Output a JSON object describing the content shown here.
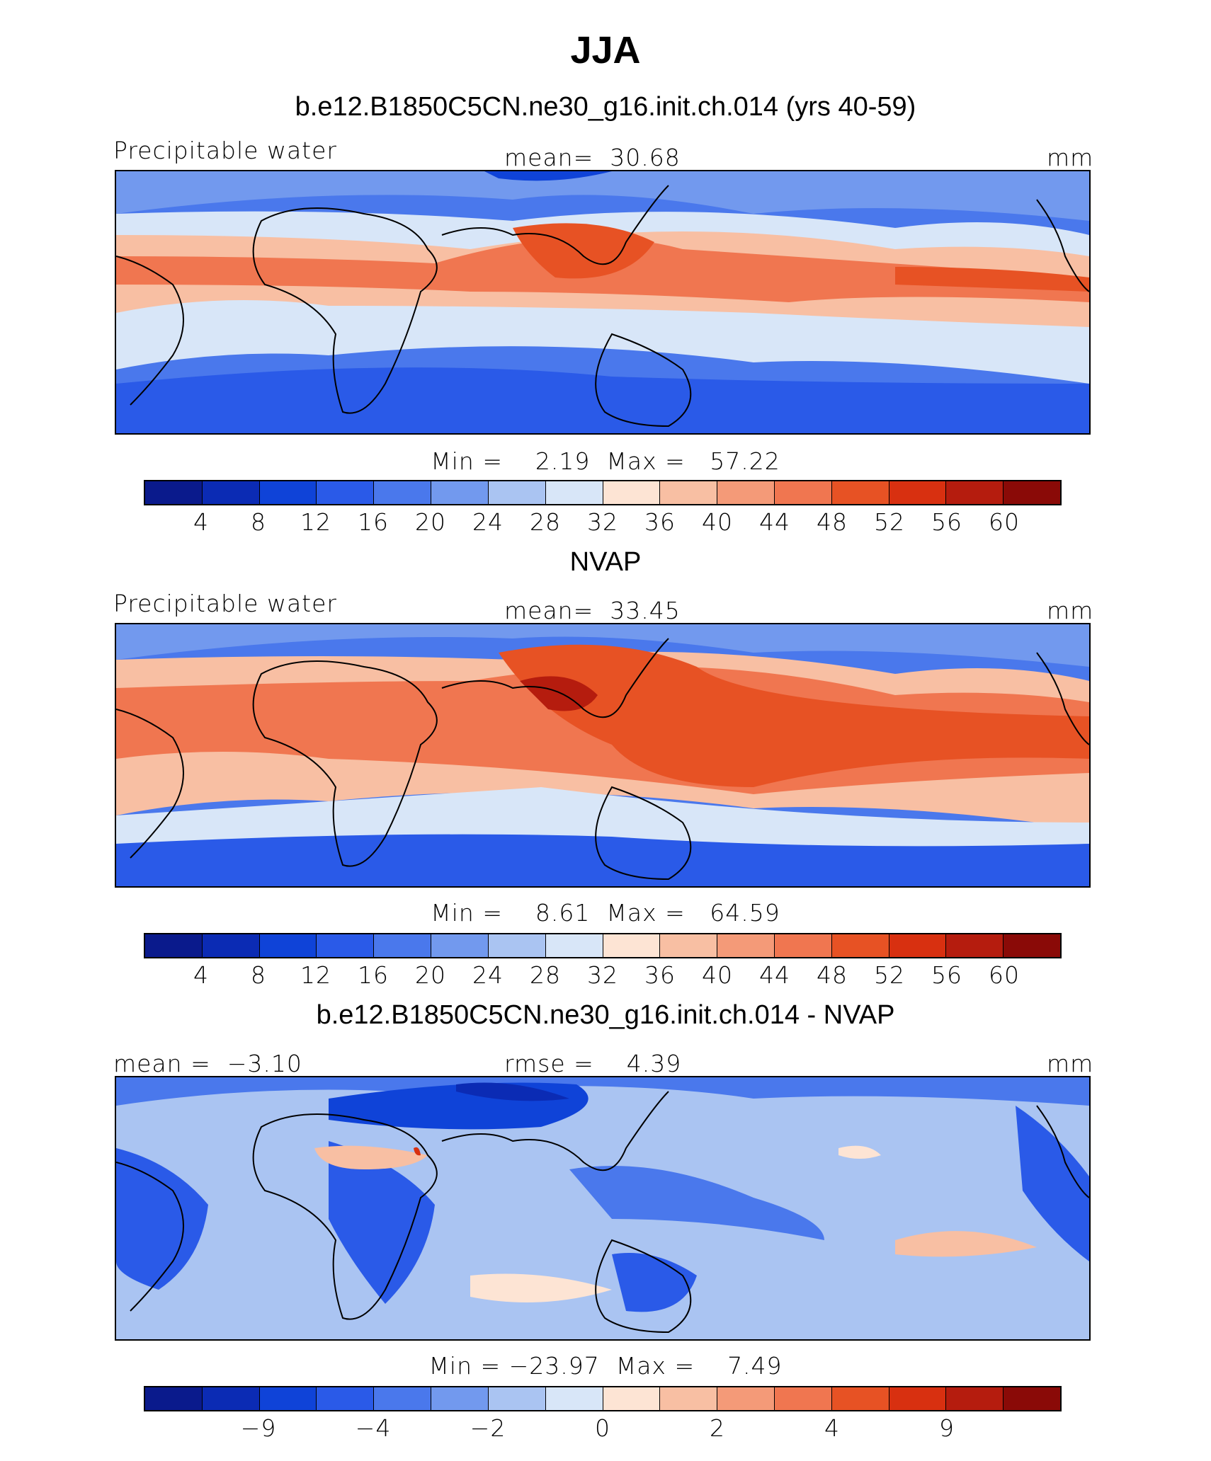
{
  "title": "JJA",
  "colorbar_colors": [
    "#0a1a8c",
    "#0b2bb4",
    "#0f43d8",
    "#2a5ae8",
    "#4a78ec",
    "#7299ee",
    "#aac4f2",
    "#d8e6f8",
    "#fde4d4",
    "#f8bfa3",
    "#f49a78",
    "#f07650",
    "#e75224",
    "#d83010",
    "#b51c0e",
    "#8a0a07"
  ],
  "charts": [
    {
      "panel_title": "b.e12.B1850C5CN.ne30_g16.init.ch.014 (yrs 40-59)",
      "left_label": "Precipitable water",
      "center_label": "mean=  30.68",
      "units": "mm",
      "min_max": "Min =    2.19  Max =   57.22",
      "tick_labels": [
        "4",
        "8",
        "12",
        "16",
        "20",
        "24",
        "28",
        "32",
        "36",
        "40",
        "44",
        "48",
        "52",
        "56",
        "60"
      ]
    },
    {
      "panel_title": "NVAP",
      "left_label": "Precipitable water",
      "center_label": "mean=  33.45",
      "units": "mm",
      "min_max": "Min =    8.61  Max =   64.59",
      "tick_labels": [
        "4",
        "8",
        "12",
        "16",
        "20",
        "24",
        "28",
        "32",
        "36",
        "40",
        "44",
        "48",
        "52",
        "56",
        "60"
      ]
    },
    {
      "panel_title": "b.e12.B1850C5CN.ne30_g16.init.ch.014 - NVAP",
      "left_label": "mean =  −3.10",
      "center_label": "rmse =    4.39",
      "units": "mm",
      "min_max": "Min = −23.97  Max =    7.49",
      "tick_labels": [
        "−9",
        "",
        "−4",
        "",
        "−2",
        "",
        "0",
        "",
        "2",
        "",
        "4",
        "",
        "9"
      ]
    }
  ],
  "chart_data": [
    {
      "type": "heatmap",
      "title": "b.e12.B1850C5CN.ne30_g16.init.ch.014 (yrs 40-59)",
      "variable": "Precipitable water",
      "units": "mm",
      "mean": 30.68,
      "min": 2.19,
      "max": 57.22,
      "contour_levels": [
        4,
        8,
        12,
        16,
        20,
        24,
        28,
        32,
        36,
        40,
        44,
        48,
        52,
        56,
        60
      ]
    },
    {
      "type": "heatmap",
      "title": "NVAP",
      "variable": "Precipitable water",
      "units": "mm",
      "mean": 33.45,
      "min": 8.61,
      "max": 64.59,
      "contour_levels": [
        4,
        8,
        12,
        16,
        20,
        24,
        28,
        32,
        36,
        40,
        44,
        48,
        52,
        56,
        60
      ]
    },
    {
      "type": "heatmap",
      "title": "b.e12.B1850C5CN.ne30_g16.init.ch.014 - NVAP",
      "units": "mm",
      "mean": -3.1,
      "rmse": 4.39,
      "min": -23.97,
      "max": 7.49,
      "contour_levels": [
        -9,
        -4,
        -2,
        0,
        2,
        4,
        9
      ]
    }
  ]
}
